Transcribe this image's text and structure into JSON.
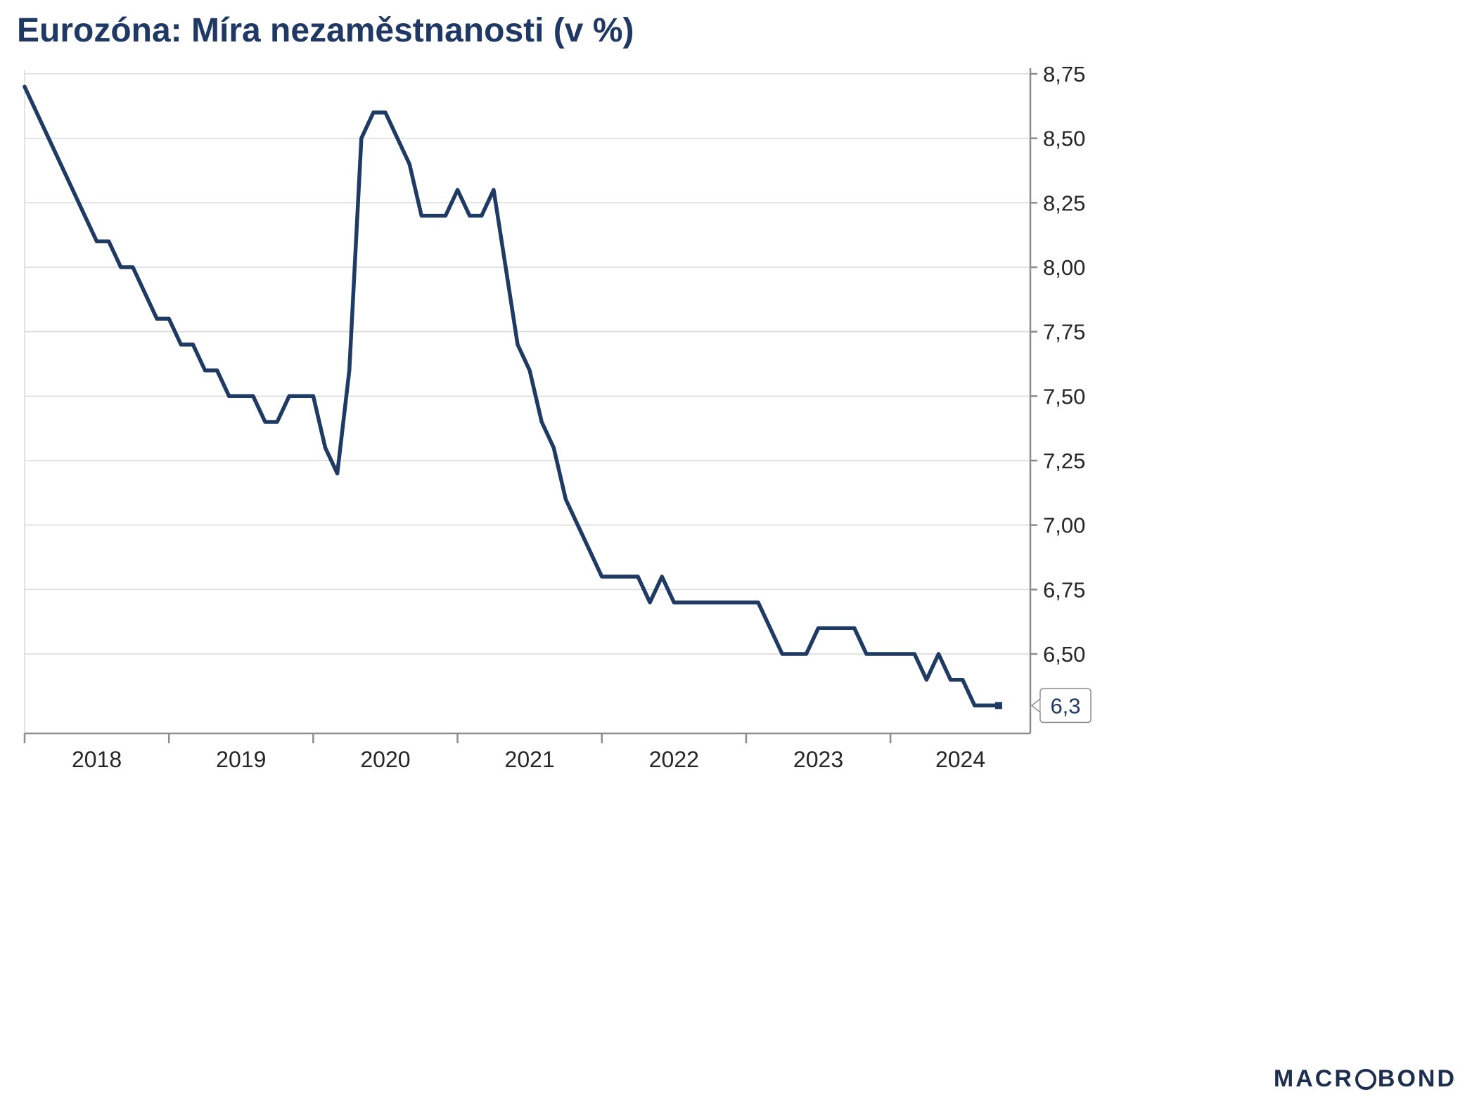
{
  "title": {
    "text": "Eurozóna: Míra nezaměstnanosti (v %)",
    "color": "#1f3864"
  },
  "logo": {
    "full_name": "MACROBOND",
    "part1": "MACR",
    "part2": "BOND"
  },
  "chart_data": {
    "type": "line",
    "title": "Eurozóna: Míra nezaměstnanosti (v %)",
    "unit": "%",
    "frequency": "monthly",
    "x_start": "2018-01",
    "x_end": "2024-10",
    "x_tick_labels": [
      "2018",
      "2019",
      "2020",
      "2021",
      "2022",
      "2023",
      "2024"
    ],
    "y_tick_labels": [
      "8,75",
      "8,50",
      "8,25",
      "8,00",
      "7,75",
      "7,50",
      "7,25",
      "7,00",
      "6,75",
      "6,50"
    ],
    "y_tick_values": [
      8.75,
      8.5,
      8.25,
      8.0,
      7.75,
      7.5,
      7.25,
      7.0,
      6.75,
      6.5
    ],
    "ylim": [
      6.19,
      8.78
    ],
    "grid": "horizontal",
    "legend": "none",
    "line_color": "#1f3a63",
    "axis_color": "#8c8c8c",
    "grid_color": "#d9d9d9",
    "tick_label_color": "#262626",
    "series": [
      {
        "name": "Eurozóna – míra nezaměstnanosti (%)",
        "values": [
          8.7,
          8.6,
          8.5,
          8.4,
          8.3,
          8.2,
          8.1,
          8.1,
          8.0,
          8.0,
          7.9,
          7.8,
          7.8,
          7.7,
          7.7,
          7.6,
          7.6,
          7.5,
          7.5,
          7.5,
          7.4,
          7.4,
          7.5,
          7.5,
          7.5,
          7.3,
          7.2,
          7.6,
          8.5,
          8.6,
          8.6,
          8.5,
          8.4,
          8.2,
          8.2,
          8.2,
          8.3,
          8.2,
          8.2,
          8.3,
          8.0,
          7.7,
          7.6,
          7.4,
          7.3,
          7.1,
          7.0,
          6.9,
          6.8,
          6.8,
          6.8,
          6.8,
          6.7,
          6.8,
          6.7,
          6.7,
          6.7,
          6.7,
          6.7,
          6.7,
          6.7,
          6.7,
          6.6,
          6.5,
          6.5,
          6.5,
          6.6,
          6.6,
          6.6,
          6.6,
          6.5,
          6.5,
          6.5,
          6.5,
          6.5,
          6.4,
          6.5,
          6.4,
          6.4,
          6.3,
          6.3,
          6.3
        ]
      }
    ],
    "last_value": 6.3,
    "last_value_label": "6,3"
  }
}
